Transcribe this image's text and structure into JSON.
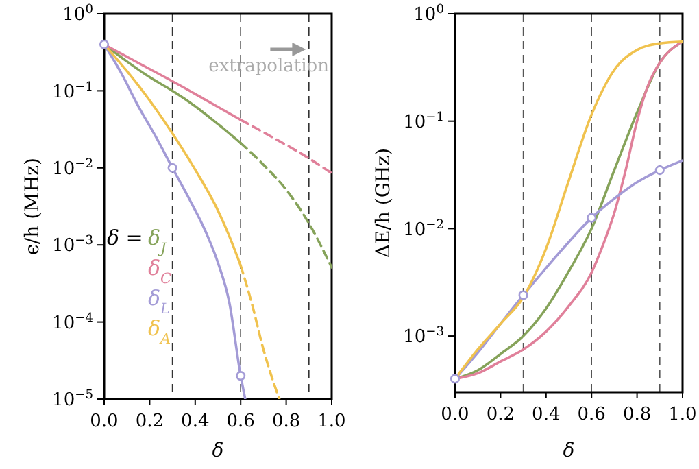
{
  "chart_data": [
    {
      "type": "line",
      "xlabel": "δ",
      "ylabel": "ϵ/h (MHz)",
      "log": "y",
      "xlim": [
        0,
        1
      ],
      "ylim": [
        1e-05,
        1
      ],
      "xticks": [
        {
          "value": 0,
          "label": "0.0"
        },
        {
          "value": 0.2,
          "label": "0.2"
        },
        {
          "value": 0.4,
          "label": "0.4"
        },
        {
          "value": 0.6,
          "label": "0.6"
        },
        {
          "value": 0.8,
          "label": "0.8"
        },
        {
          "value": 1,
          "label": "1.0"
        }
      ],
      "yticks": [
        {
          "value": 1e-05,
          "label": "10$^{−5}$"
        },
        {
          "value": 0.0001,
          "label": "10$^{−4}$"
        },
        {
          "value": 0.001,
          "label": "10$^{−3}$"
        },
        {
          "value": 0.01,
          "label": "10$^{−2}$"
        },
        {
          "value": 0.1,
          "label": "10$^{−1}$"
        },
        {
          "value": 1,
          "label": "10$^{0}$"
        }
      ],
      "grid": false,
      "legend": "left",
      "legend_title": "δ =",
      "annotations": [
        "extrapolation"
      ],
      "ref_lines": [
        {
          "axis": "x",
          "value": 0.3,
          "color": "#333333",
          "line_style": "dashed"
        },
        {
          "axis": "x",
          "value": 0.6,
          "color": "#333333",
          "line_style": "dashed"
        },
        {
          "axis": "x",
          "value": 0.9,
          "color": "#333333",
          "line_style": "dashed"
        }
      ],
      "series": [
        {
          "name": "δ$_{J}$",
          "color": "#86a35a",
          "line_style": "solid",
          "x": [
            0,
            0.1,
            0.2,
            0.3,
            0.4,
            0.5,
            0.6
          ],
          "values": [
            0.4,
            0.24,
            0.15,
            0.1,
            0.063,
            0.037,
            0.021
          ]
        },
        {
          "name": "δ$_{C}$",
          "color": "#e0809a",
          "line_style": "solid",
          "x": [
            0,
            0.15,
            0.3,
            0.45,
            0.6
          ],
          "values": [
            0.4,
            0.23,
            0.133,
            0.075,
            0.042
          ]
        },
        {
          "name": "δ$_{L}$",
          "color": "#a39bd6",
          "line_style": "solid",
          "x": [
            0,
            0.075,
            0.15,
            0.225,
            0.3,
            0.375,
            0.45,
            0.5,
            0.55,
            0.6,
            0.62
          ],
          "values": [
            0.4,
            0.17,
            0.063,
            0.026,
            0.01,
            0.0039,
            0.0014,
            0.00059,
            0.00018,
            2e-05,
            1e-05
          ]
        },
        {
          "name": "δ$_{A}$",
          "color": "#f0c24e",
          "line_style": "solid",
          "x": [
            0,
            0.1,
            0.2,
            0.3,
            0.4,
            0.5,
            0.55,
            0.6
          ],
          "values": [
            0.4,
            0.18,
            0.075,
            0.028,
            0.0095,
            0.0028,
            0.0013,
            0.00054
          ]
        },
        {
          "color": "#86a35a",
          "line_style": "dashed",
          "x": [
            0.6,
            0.7,
            0.8,
            0.9,
            1
          ],
          "values": [
            0.021,
            0.011,
            0.0052,
            0.0019,
            0.00051
          ]
        },
        {
          "color": "#e0809a",
          "line_style": "dashed",
          "x": [
            0.6,
            0.75,
            0.9,
            1
          ],
          "values": [
            0.042,
            0.024,
            0.0133,
            0.0085
          ]
        },
        {
          "color": "#f0c24e",
          "line_style": "dashed",
          "x": [
            0.6,
            0.65,
            0.7,
            0.74,
            0.77
          ],
          "values": [
            0.00054,
            0.00017,
            4.4e-05,
            1.8e-05,
            1e-05
          ]
        },
        {
          "type": "scatter",
          "color": "#a39bd6",
          "marker": "circle",
          "x": [
            0,
            0.3,
            0.6
          ],
          "values": [
            0.4,
            0.01,
            2e-05
          ]
        }
      ]
    },
    {
      "type": "line",
      "xlabel": "δ",
      "ylabel": "ΔE/h (GHz)",
      "log": "y",
      "xlim": [
        0,
        1
      ],
      "ylim": [
        0.0003,
        1
      ],
      "xticks": [
        {
          "value": 0,
          "label": "0.0"
        },
        {
          "value": 0.2,
          "label": "0.2"
        },
        {
          "value": 0.4,
          "label": "0.4"
        },
        {
          "value": 0.6,
          "label": "0.6"
        },
        {
          "value": 0.8,
          "label": "0.8"
        },
        {
          "value": 1,
          "label": "1.0"
        }
      ],
      "yticks": [
        {
          "value": 0.001,
          "label": "10$^{−3}$"
        },
        {
          "value": 0.01,
          "label": "10$^{−2}$"
        },
        {
          "value": 0.1,
          "label": "10$^{−1}$"
        },
        {
          "value": 1,
          "label": "10$^{0}$"
        }
      ],
      "grid": false,
      "ref_lines": [
        {
          "axis": "x",
          "value": 0.3,
          "color": "#555555",
          "line_style": "dashed"
        },
        {
          "axis": "x",
          "value": 0.6,
          "color": "#555555",
          "line_style": "dashed"
        },
        {
          "axis": "x",
          "value": 0.9,
          "color": "#555555",
          "line_style": "dashed"
        }
      ],
      "series": [
        {
          "color": "#86a35a",
          "line_style": "solid",
          "x": [
            0,
            0.1,
            0.2,
            0.3,
            0.4,
            0.5,
            0.6,
            0.7,
            0.8,
            0.9,
            1
          ],
          "values": [
            0.0004,
            0.00048,
            0.00068,
            0.001,
            0.0018,
            0.004,
            0.01,
            0.035,
            0.12,
            0.35,
            0.55
          ]
        },
        {
          "color": "#e0809a",
          "line_style": "solid",
          "x": [
            0,
            0.1,
            0.2,
            0.3,
            0.4,
            0.5,
            0.6,
            0.65,
            0.7,
            0.75,
            0.8,
            0.85,
            0.9,
            1
          ],
          "values": [
            0.0004,
            0.00045,
            0.00058,
            0.00075,
            0.0011,
            0.0019,
            0.0039,
            0.007,
            0.014,
            0.035,
            0.1,
            0.22,
            0.35,
            0.55
          ]
        },
        {
          "color": "#a39bd6",
          "line_style": "solid",
          "x": [
            0,
            0.1,
            0.2,
            0.3,
            0.4,
            0.5,
            0.6,
            0.7,
            0.8,
            0.9,
            1
          ],
          "values": [
            0.0004,
            0.0007,
            0.0013,
            0.0024,
            0.0043,
            0.0075,
            0.0126,
            0.019,
            0.027,
            0.035,
            0.043
          ]
        },
        {
          "color": "#f0c24e",
          "line_style": "solid",
          "x": [
            0,
            0.1,
            0.2,
            0.3,
            0.4,
            0.5,
            0.6,
            0.7,
            0.8,
            0.9,
            1
          ],
          "values": [
            0.0004,
            0.00075,
            0.0013,
            0.0023,
            0.0065,
            0.028,
            0.115,
            0.3,
            0.46,
            0.53,
            0.55
          ]
        },
        {
          "type": "scatter",
          "color": "#a39bd6",
          "marker": "circle",
          "x": [
            0,
            0.3,
            0.6,
            0.9
          ],
          "values": [
            0.0004,
            0.0024,
            0.0126,
            0.035
          ]
        }
      ]
    }
  ]
}
